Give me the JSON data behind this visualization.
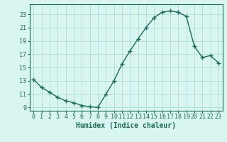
{
  "x": [
    0,
    1,
    2,
    3,
    4,
    5,
    6,
    7,
    8,
    9,
    10,
    11,
    12,
    13,
    14,
    15,
    16,
    17,
    18,
    19,
    20,
    21,
    22,
    23
  ],
  "y": [
    13.2,
    12.0,
    11.3,
    10.5,
    10.0,
    9.7,
    9.3,
    9.1,
    9.0,
    11.0,
    13.0,
    15.5,
    17.5,
    19.3,
    21.0,
    22.5,
    23.3,
    23.5,
    23.3,
    22.7,
    18.2,
    16.5,
    16.8,
    15.7
  ],
  "line_color": "#1a6b5a",
  "marker": "+",
  "markersize": 4,
  "linewidth": 1.0,
  "bg_color": "#d8f5f0",
  "grid_color": "#b0ddd8",
  "xlabel": "Humidex (Indice chaleur)",
  "xlabel_fontsize": 7,
  "tick_fontsize": 6,
  "ylim": [
    8.5,
    24.5
  ],
  "xlim": [
    -0.5,
    23.5
  ],
  "yticks": [
    9,
    11,
    13,
    15,
    17,
    19,
    21,
    23
  ],
  "xticks": [
    0,
    1,
    2,
    3,
    4,
    5,
    6,
    7,
    8,
    9,
    10,
    11,
    12,
    13,
    14,
    15,
    16,
    17,
    18,
    19,
    20,
    21,
    22,
    23
  ]
}
